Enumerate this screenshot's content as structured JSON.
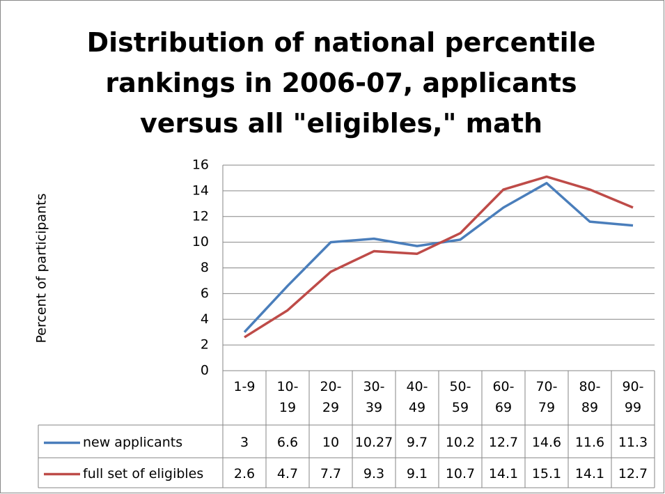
{
  "chart_data": {
    "type": "line",
    "title": "Distribution of national percentile rankings in 2006-07, applicants versus all \"eligibles,\" math",
    "y_label": "Percent of participants",
    "categories": [
      "1-9",
      "10-19",
      "20-29",
      "30-39",
      "40-49",
      "50-59",
      "60-69",
      "70-79",
      "80-89",
      "90-99"
    ],
    "series": [
      {
        "name": "new applicants",
        "color": "#4a7ebb",
        "values": [
          3,
          6.6,
          10,
          10.27,
          9.7,
          10.2,
          12.7,
          14.6,
          11.6,
          11.3
        ]
      },
      {
        "name": "full set of eligibles",
        "color": "#be4b48",
        "values": [
          2.6,
          4.7,
          7.7,
          9.3,
          9.1,
          10.7,
          14.1,
          15.1,
          14.1,
          12.7
        ]
      }
    ],
    "ylim": [
      0,
      16
    ],
    "yticks": [
      0,
      2,
      4,
      6,
      8,
      10,
      12,
      14,
      16
    ],
    "grid": true,
    "data_table": true
  }
}
